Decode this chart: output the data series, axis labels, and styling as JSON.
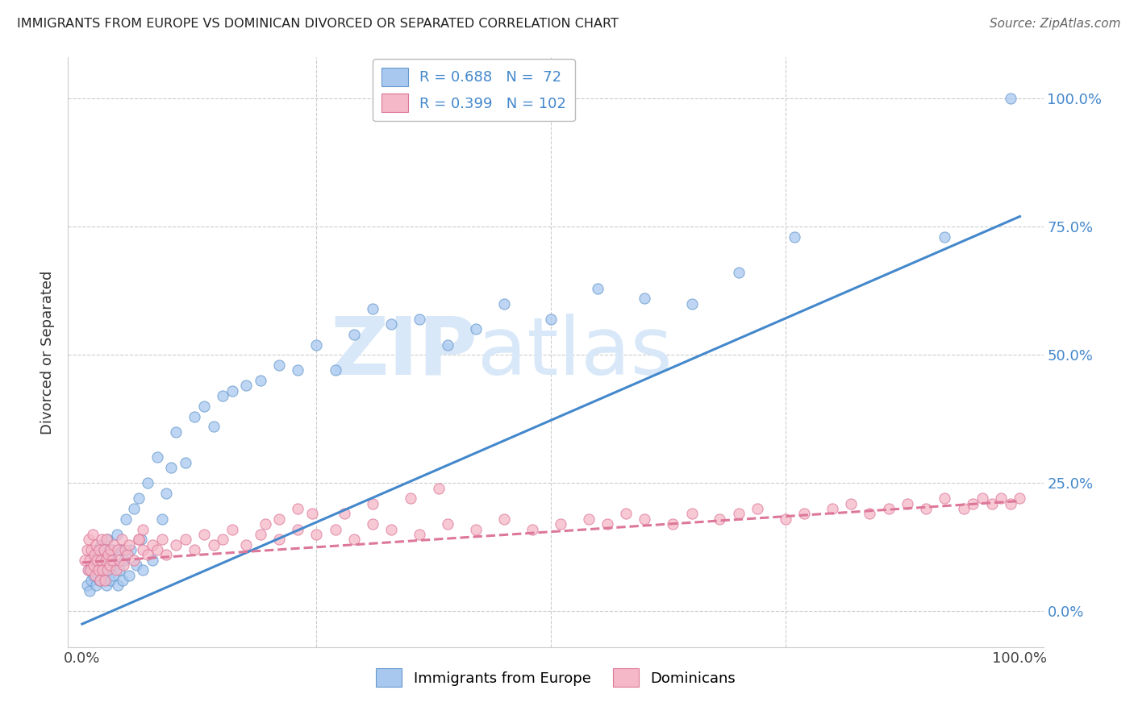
{
  "title": "IMMIGRANTS FROM EUROPE VS DOMINICAN DIVORCED OR SEPARATED CORRELATION CHART",
  "source": "Source: ZipAtlas.com",
  "ylabel": "Divorced or Separated",
  "legend_r1": "R = 0.688",
  "legend_n1": "N =  72",
  "legend_r2": "R = 0.399",
  "legend_n2": "N = 102",
  "color_blue_fill": "#A8C8F0",
  "color_blue_edge": "#6699CC",
  "color_pink_fill": "#F5B8C8",
  "color_pink_edge": "#DD7799",
  "line_blue": "#4488CC",
  "line_pink": "#DD7799",
  "watermark_color": "#D8E8F8",
  "grid_color": "#CCCCCC",
  "background_color": "#FFFFFF",
  "title_color": "#222222",
  "source_color": "#666666",
  "axis_label_color": "#333333",
  "tick_color_blue": "#4488CC",
  "blue_line_x0": 0.0,
  "blue_line_y0": -0.025,
  "blue_line_x1": 1.0,
  "blue_line_y1": 0.77,
  "pink_line_x0": 0.0,
  "pink_line_y0": 0.095,
  "pink_line_x1": 1.0,
  "pink_line_y1": 0.215,
  "xlim_min": -0.015,
  "xlim_max": 1.025,
  "ylim_min": -0.07,
  "ylim_max": 1.08,
  "blue_x": [
    0.005,
    0.007,
    0.008,
    0.01,
    0.01,
    0.012,
    0.013,
    0.015,
    0.015,
    0.017,
    0.018,
    0.02,
    0.02,
    0.022,
    0.023,
    0.025,
    0.026,
    0.027,
    0.028,
    0.03,
    0.03,
    0.032,
    0.033,
    0.035,
    0.037,
    0.038,
    0.04,
    0.042,
    0.043,
    0.045,
    0.047,
    0.05,
    0.052,
    0.055,
    0.058,
    0.06,
    0.063,
    0.065,
    0.07,
    0.075,
    0.08,
    0.085,
    0.09,
    0.095,
    0.1,
    0.11,
    0.12,
    0.13,
    0.14,
    0.15,
    0.16,
    0.175,
    0.19,
    0.21,
    0.23,
    0.25,
    0.27,
    0.29,
    0.31,
    0.33,
    0.36,
    0.39,
    0.42,
    0.45,
    0.5,
    0.55,
    0.6,
    0.65,
    0.7,
    0.76,
    0.92,
    0.99
  ],
  "blue_y": [
    0.05,
    0.08,
    0.04,
    0.09,
    0.06,
    0.07,
    0.1,
    0.05,
    0.12,
    0.08,
    0.06,
    0.1,
    0.13,
    0.07,
    0.09,
    0.11,
    0.05,
    0.14,
    0.08,
    0.1,
    0.06,
    0.12,
    0.07,
    0.09,
    0.15,
    0.05,
    0.08,
    0.12,
    0.06,
    0.1,
    0.18,
    0.07,
    0.12,
    0.2,
    0.09,
    0.22,
    0.14,
    0.08,
    0.25,
    0.1,
    0.3,
    0.18,
    0.23,
    0.28,
    0.35,
    0.29,
    0.38,
    0.4,
    0.36,
    0.42,
    0.43,
    0.44,
    0.45,
    0.48,
    0.47,
    0.52,
    0.47,
    0.54,
    0.59,
    0.56,
    0.57,
    0.52,
    0.55,
    0.6,
    0.57,
    0.63,
    0.61,
    0.6,
    0.66,
    0.73,
    0.73,
    1.0
  ],
  "pink_x": [
    0.003,
    0.005,
    0.006,
    0.007,
    0.008,
    0.009,
    0.01,
    0.011,
    0.012,
    0.013,
    0.014,
    0.015,
    0.016,
    0.017,
    0.018,
    0.019,
    0.02,
    0.021,
    0.022,
    0.023,
    0.024,
    0.025,
    0.026,
    0.027,
    0.028,
    0.029,
    0.03,
    0.032,
    0.034,
    0.036,
    0.038,
    0.04,
    0.042,
    0.044,
    0.046,
    0.048,
    0.05,
    0.055,
    0.06,
    0.065,
    0.07,
    0.075,
    0.08,
    0.085,
    0.09,
    0.1,
    0.11,
    0.12,
    0.13,
    0.14,
    0.15,
    0.16,
    0.175,
    0.19,
    0.21,
    0.23,
    0.25,
    0.27,
    0.29,
    0.31,
    0.33,
    0.36,
    0.39,
    0.42,
    0.45,
    0.48,
    0.51,
    0.54,
    0.56,
    0.58,
    0.6,
    0.63,
    0.65,
    0.68,
    0.7,
    0.72,
    0.75,
    0.77,
    0.8,
    0.82,
    0.84,
    0.86,
    0.88,
    0.9,
    0.92,
    0.94,
    0.95,
    0.96,
    0.97,
    0.98,
    0.99,
    1.0,
    0.35,
    0.38,
    0.28,
    0.31,
    0.21,
    0.23,
    0.195,
    0.245,
    0.06,
    0.065
  ],
  "pink_y": [
    0.1,
    0.12,
    0.08,
    0.14,
    0.1,
    0.08,
    0.12,
    0.15,
    0.09,
    0.11,
    0.07,
    0.13,
    0.1,
    0.08,
    0.12,
    0.06,
    0.1,
    0.14,
    0.08,
    0.12,
    0.06,
    0.1,
    0.14,
    0.08,
    0.11,
    0.09,
    0.12,
    0.1,
    0.13,
    0.08,
    0.12,
    0.1,
    0.14,
    0.09,
    0.12,
    0.11,
    0.13,
    0.1,
    0.14,
    0.12,
    0.11,
    0.13,
    0.12,
    0.14,
    0.11,
    0.13,
    0.14,
    0.12,
    0.15,
    0.13,
    0.14,
    0.16,
    0.13,
    0.15,
    0.14,
    0.16,
    0.15,
    0.16,
    0.14,
    0.17,
    0.16,
    0.15,
    0.17,
    0.16,
    0.18,
    0.16,
    0.17,
    0.18,
    0.17,
    0.19,
    0.18,
    0.17,
    0.19,
    0.18,
    0.19,
    0.2,
    0.18,
    0.19,
    0.2,
    0.21,
    0.19,
    0.2,
    0.21,
    0.2,
    0.22,
    0.2,
    0.21,
    0.22,
    0.21,
    0.22,
    0.21,
    0.22,
    0.22,
    0.24,
    0.19,
    0.21,
    0.18,
    0.2,
    0.17,
    0.19,
    0.14,
    0.16
  ]
}
